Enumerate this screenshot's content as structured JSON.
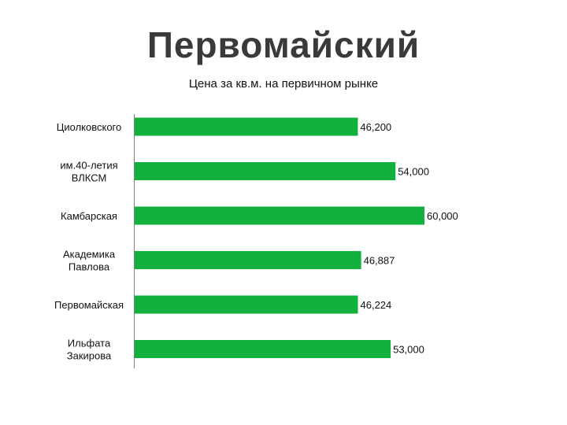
{
  "title": "Первомайский",
  "chart_data": {
    "type": "bar",
    "orientation": "horizontal",
    "title": "Цена за кв.м.  на первичном рынке",
    "categories": [
      [
        "Циолковского"
      ],
      [
        "им.40-летия",
        "ВЛКСМ"
      ],
      [
        "Камбарская"
      ],
      [
        "Академика",
        "Павлова"
      ],
      [
        "Первомайская"
      ],
      [
        "Ильфата",
        "Закирова"
      ]
    ],
    "values": [
      46200,
      54000,
      60000,
      46887,
      46224,
      53000
    ],
    "value_labels": [
      "46,200",
      "54,000",
      "60,000",
      "46,887",
      "46,224",
      "53,000"
    ],
    "xlim": [
      0,
      60000
    ],
    "grid": false,
    "legend": "none",
    "bar_color": "#12b03c"
  }
}
